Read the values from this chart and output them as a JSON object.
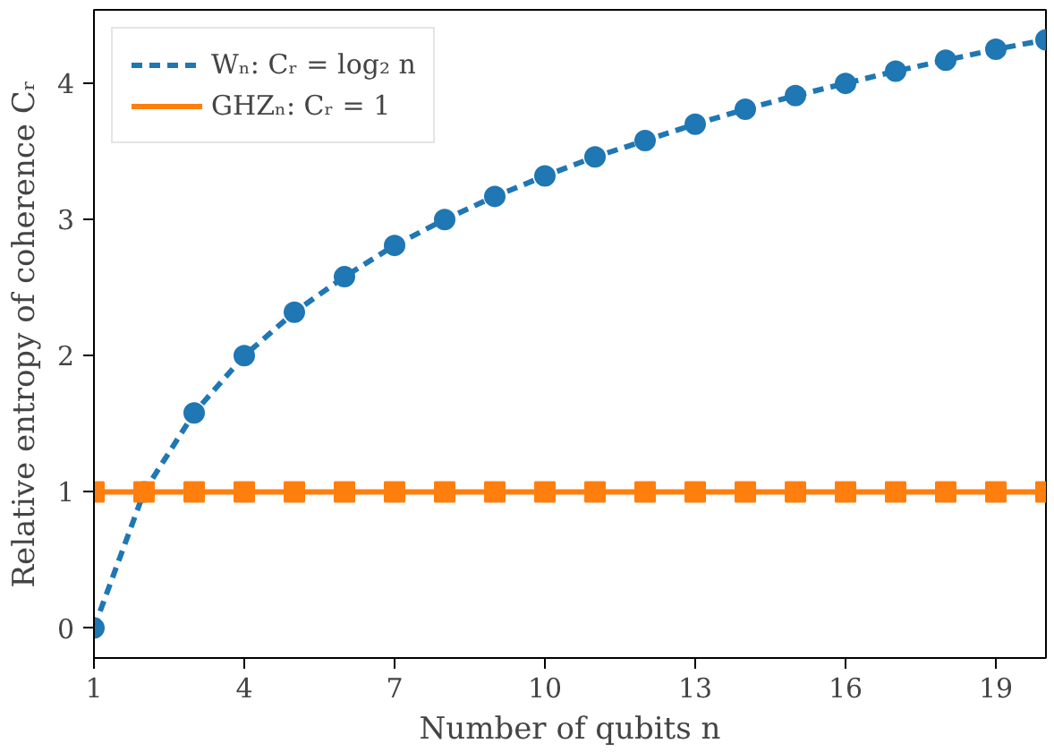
{
  "chart_data": {
    "type": "line",
    "xlabel": "Number of qubits n",
    "ylabel": "Relative entropy of coherence Cᵣ",
    "x": [
      1,
      2,
      3,
      4,
      5,
      6,
      7,
      8,
      9,
      10,
      11,
      12,
      13,
      14,
      15,
      16,
      17,
      18,
      19,
      20
    ],
    "series": [
      {
        "name": "Wₙ: Cᵣ = log₂ n",
        "color": "#1f77b4",
        "marker": "circle",
        "line_style": "dashed",
        "values": [
          0,
          1,
          1.58,
          2,
          2.32,
          2.58,
          2.81,
          3,
          3.17,
          3.32,
          3.46,
          3.58,
          3.7,
          3.81,
          3.91,
          4,
          4.09,
          4.17,
          4.25,
          4.32
        ]
      },
      {
        "name": "GHZₙ: Cᵣ = 1",
        "color": "#ff7f0e",
        "marker": "square",
        "line_style": "solid",
        "values": [
          1,
          1,
          1,
          1,
          1,
          1,
          1,
          1,
          1,
          1,
          1,
          1,
          1,
          1,
          1,
          1,
          1,
          1,
          1,
          1
        ]
      }
    ],
    "xlim": [
      1,
      20
    ],
    "xticks": [
      1,
      4,
      7,
      10,
      13,
      16,
      19
    ],
    "ylim": [
      -0.22,
      4.54
    ],
    "yticks": [
      0,
      1,
      2,
      3,
      4
    ],
    "grid": false,
    "legend": "top left"
  }
}
